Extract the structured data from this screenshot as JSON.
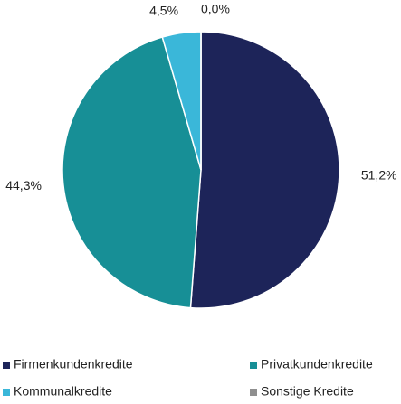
{
  "chart_data": {
    "type": "pie",
    "categories": [
      "Firmenkundenkredite",
      "Privatkundenkredite",
      "Kommunalkredite",
      "Sonstige Kredite"
    ],
    "values": [
      51.2,
      44.3,
      4.5,
      0.0
    ],
    "value_labels": [
      "51,2%",
      "44,3%",
      "4,5%",
      "0,0%"
    ],
    "colors": [
      "#1d2459",
      "#178f96",
      "#3ab7d9",
      "#8f8f8f"
    ],
    "legend": "bottom"
  }
}
